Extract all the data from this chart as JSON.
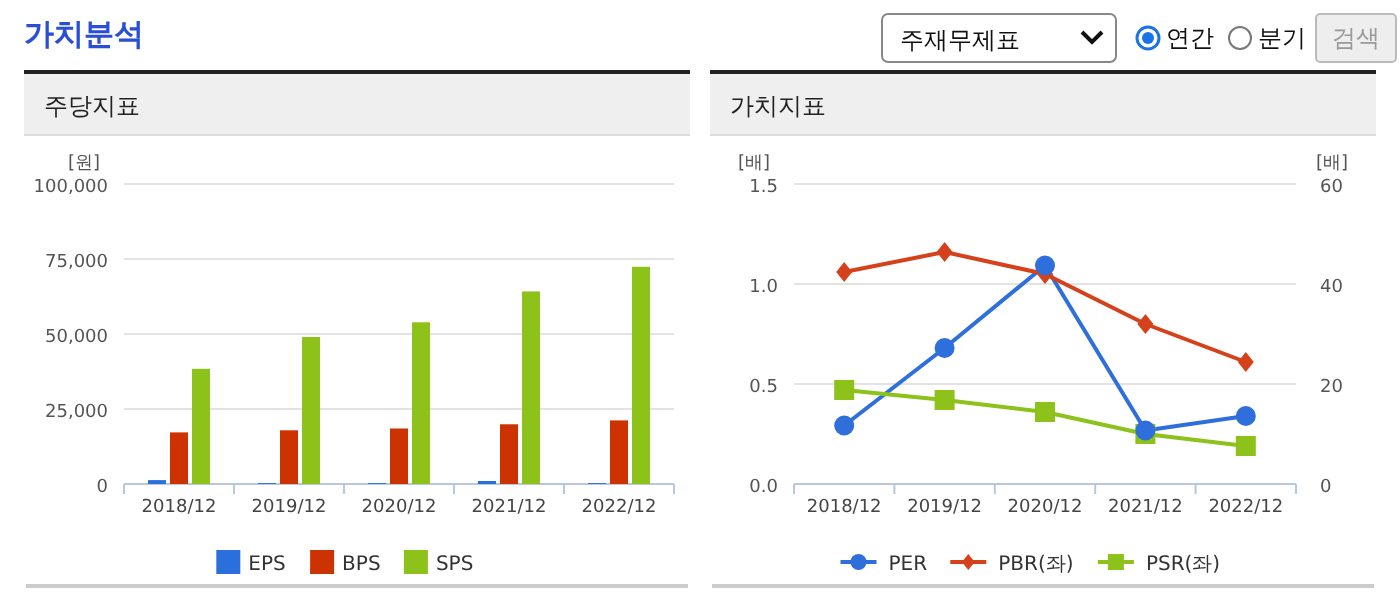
{
  "chart_data": [
    {
      "type": "other",
      "title": "가치분석",
      "annotations": [
        "주재무제표",
        "연간",
        "분기",
        "검색"
      ]
    },
    {
      "type": "bar",
      "title": "주당지표",
      "ylabel": "[원]",
      "categories": [
        "2018/12",
        "2019/12",
        "2020/12",
        "2021/12",
        "2022/12"
      ],
      "series": [
        {
          "name": "EPS",
          "color": "#2a6fdb",
          "values": [
            1300,
            300,
            300,
            1000,
            300
          ]
        },
        {
          "name": "BPS",
          "color": "#cc3300",
          "values": [
            17200,
            17900,
            18500,
            19900,
            21200
          ]
        },
        {
          "name": "SPS",
          "color": "#8cc21a",
          "values": [
            38400,
            49000,
            53900,
            64200,
            72400
          ]
        }
      ],
      "ylim": [
        0,
        100000
      ],
      "yticks": [
        0,
        {
          "value": 25000,
          "label": "25,000"
        },
        {
          "value": 50000,
          "label": "50,000"
        },
        {
          "value": 75000,
          "label": "75,000"
        },
        {
          "value": 100000,
          "label": "100,000"
        }
      ],
      "grid": "y",
      "legend": "bottom"
    },
    {
      "type": "line",
      "title": "가치지표",
      "ylabel": "[배]",
      "y2label": "[배]",
      "categories": [
        "2018/12",
        "2019/12",
        "2020/12",
        "2021/12",
        "2022/12"
      ],
      "series": [
        {
          "name": "PER",
          "color": "#2f6fdc",
          "axis": "y2",
          "marker": "circle",
          "values": [
            11.7,
            27.2,
            43.7,
            10.7,
            13.6
          ]
        },
        {
          "name": "PBR(좌)",
          "color": "#d4411a",
          "marker": "diamond",
          "values": [
            1.06,
            1.16,
            1.05,
            0.8,
            0.61
          ]
        },
        {
          "name": "PSR(좌)",
          "color": "#8cc21a",
          "marker": "square",
          "values": [
            0.47,
            0.42,
            0.36,
            0.25,
            0.19
          ]
        }
      ],
      "ylim": [
        0,
        1.5
      ],
      "yticks": [
        {
          "value": 0,
          "label": "0.0"
        },
        0.5,
        {
          "value": 1,
          "label": "1.0"
        },
        1.5
      ],
      "y2lim": [
        0,
        60
      ],
      "y2ticks": [
        0,
        20,
        40,
        60
      ],
      "grid": "y",
      "legend": "bottom"
    }
  ]
}
